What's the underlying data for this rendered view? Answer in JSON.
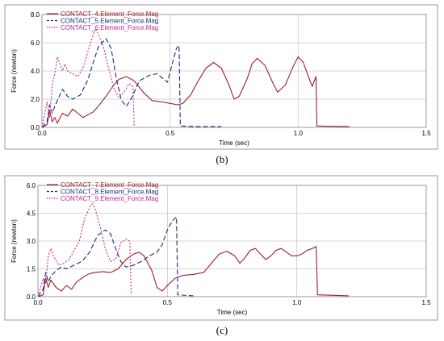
{
  "chart_data": [
    {
      "type": "line",
      "caption": "(b)",
      "xlabel": "Time (sec)",
      "ylabel": "Force (newton)",
      "xlim": [
        0,
        1.5
      ],
      "ylim": [
        0,
        8
      ],
      "x_ticks": [
        "0.0",
        "0.5",
        "1.0",
        "1.5"
      ],
      "y_ticks": [
        "0.0",
        "2.0",
        "4.0",
        "6.0",
        "8.0"
      ],
      "grid": true,
      "legend": "top-left",
      "series": [
        {
          "name": "CONTACT_4.Element_Force.Mag",
          "color": "#9a1f2a",
          "dash": "solid",
          "points": [
            [
              0,
              0
            ],
            [
              0.02,
              0.2
            ],
            [
              0.03,
              1.2
            ],
            [
              0.04,
              0.4
            ],
            [
              0.05,
              0.7
            ],
            [
              0.06,
              0.3
            ],
            [
              0.08,
              1.0
            ],
            [
              0.1,
              0.8
            ],
            [
              0.12,
              1.3
            ],
            [
              0.14,
              1.0
            ],
            [
              0.16,
              0.7
            ],
            [
              0.18,
              0.9
            ],
            [
              0.2,
              1.1
            ],
            [
              0.22,
              1.5
            ],
            [
              0.25,
              2.2
            ],
            [
              0.28,
              3.0
            ],
            [
              0.3,
              3.4
            ],
            [
              0.33,
              3.6
            ],
            [
              0.36,
              3.3
            ],
            [
              0.4,
              2.4
            ],
            [
              0.43,
              1.9
            ],
            [
              0.47,
              1.8
            ],
            [
              0.5,
              1.7
            ],
            [
              0.53,
              1.6
            ],
            [
              0.55,
              1.7
            ],
            [
              0.58,
              2.3
            ],
            [
              0.61,
              3.3
            ],
            [
              0.64,
              4.2
            ],
            [
              0.67,
              4.6
            ],
            [
              0.7,
              4.2
            ],
            [
              0.73,
              3.0
            ],
            [
              0.75,
              2.0
            ],
            [
              0.77,
              2.2
            ],
            [
              0.8,
              3.4
            ],
            [
              0.82,
              4.5
            ],
            [
              0.84,
              4.9
            ],
            [
              0.87,
              4.4
            ],
            [
              0.9,
              3.2
            ],
            [
              0.92,
              2.5
            ],
            [
              0.95,
              3.0
            ],
            [
              0.98,
              4.3
            ],
            [
              1.0,
              5.0
            ],
            [
              1.02,
              4.6
            ],
            [
              1.04,
              3.6
            ],
            [
              1.055,
              2.9
            ],
            [
              1.065,
              3.4
            ],
            [
              1.07,
              3.6
            ],
            [
              1.073,
              0.1
            ],
            [
              1.2,
              0.05
            ]
          ]
        },
        {
          "name": "CONTACT_5.Element_Force.Mag",
          "color": "#1a2a7c",
          "dash": "6,3",
          "points": [
            [
              0,
              0
            ],
            [
              0.02,
              0.4
            ],
            [
              0.03,
              1.6
            ],
            [
              0.04,
              1.0
            ],
            [
              0.05,
              1.5
            ],
            [
              0.06,
              1.9
            ],
            [
              0.08,
              2.7
            ],
            [
              0.1,
              2.2
            ],
            [
              0.12,
              2.0
            ],
            [
              0.15,
              2.3
            ],
            [
              0.18,
              3.4
            ],
            [
              0.2,
              4.6
            ],
            [
              0.22,
              5.7
            ],
            [
              0.25,
              6.3
            ],
            [
              0.27,
              5.6
            ],
            [
              0.29,
              3.5
            ],
            [
              0.31,
              1.9
            ],
            [
              0.33,
              1.5
            ],
            [
              0.35,
              2.1
            ],
            [
              0.38,
              3.3
            ],
            [
              0.42,
              3.7
            ],
            [
              0.45,
              3.8
            ],
            [
              0.47,
              3.5
            ],
            [
              0.49,
              3.2
            ],
            [
              0.51,
              4.6
            ],
            [
              0.525,
              5.6
            ],
            [
              0.535,
              5.8
            ],
            [
              0.54,
              0.1
            ],
            [
              0.6,
              0.05
            ],
            [
              0.7,
              0.05
            ]
          ]
        },
        {
          "name": "CONTACT_6.Element_Force.Mag",
          "color": "#b8298f",
          "dash": "2,2",
          "points": [
            [
              0,
              0
            ],
            [
              0.02,
              1.8
            ],
            [
              0.03,
              0.7
            ],
            [
              0.04,
              3.0
            ],
            [
              0.05,
              3.8
            ],
            [
              0.06,
              5.0
            ],
            [
              0.07,
              4.5
            ],
            [
              0.08,
              4.0
            ],
            [
              0.09,
              4.5
            ],
            [
              0.1,
              4.0
            ],
            [
              0.12,
              3.8
            ],
            [
              0.14,
              3.6
            ],
            [
              0.16,
              4.2
            ],
            [
              0.18,
              5.4
            ],
            [
              0.2,
              6.6
            ],
            [
              0.21,
              7.0
            ],
            [
              0.22,
              6.6
            ],
            [
              0.24,
              5.7
            ],
            [
              0.26,
              4.2
            ],
            [
              0.28,
              2.8
            ],
            [
              0.3,
              2.1
            ],
            [
              0.32,
              2.5
            ],
            [
              0.34,
              3.1
            ],
            [
              0.355,
              2.9
            ],
            [
              0.36,
              0.1
            ]
          ]
        }
      ]
    },
    {
      "type": "line",
      "caption": "(c)",
      "xlabel": "Time (sec)",
      "ylabel": "Force (newton)",
      "xlim": [
        0,
        1.5
      ],
      "ylim": [
        0,
        6
      ],
      "x_ticks": [
        "0.0",
        "0.5",
        "1.0",
        "1.5"
      ],
      "y_ticks": [
        "0.0",
        "1.5",
        "3.0",
        "4.5",
        "6.0"
      ],
      "grid": true,
      "legend": "top-left",
      "series": [
        {
          "name": "CONTACT_7.Element_Force.Mag",
          "color": "#9a1f2a",
          "dash": "solid",
          "points": [
            [
              0,
              0
            ],
            [
              0.02,
              0.1
            ],
            [
              0.03,
              1.0
            ],
            [
              0.04,
              0.5
            ],
            [
              0.05,
              0.9
            ],
            [
              0.07,
              0.5
            ],
            [
              0.09,
              0.3
            ],
            [
              0.11,
              0.6
            ],
            [
              0.13,
              0.4
            ],
            [
              0.15,
              0.8
            ],
            [
              0.18,
              1.1
            ],
            [
              0.2,
              1.25
            ],
            [
              0.22,
              1.3
            ],
            [
              0.25,
              1.35
            ],
            [
              0.28,
              1.3
            ],
            [
              0.31,
              1.5
            ],
            [
              0.34,
              2.0
            ],
            [
              0.37,
              2.3
            ],
            [
              0.39,
              2.4
            ],
            [
              0.41,
              2.2
            ],
            [
              0.44,
              1.4
            ],
            [
              0.46,
              0.5
            ],
            [
              0.48,
              0.3
            ],
            [
              0.5,
              0.6
            ],
            [
              0.53,
              1.0
            ],
            [
              0.56,
              1.15
            ],
            [
              0.6,
              1.2
            ],
            [
              0.64,
              1.3
            ],
            [
              0.67,
              1.8
            ],
            [
              0.7,
              2.3
            ],
            [
              0.73,
              2.45
            ],
            [
              0.76,
              2.2
            ],
            [
              0.78,
              1.8
            ],
            [
              0.8,
              2.1
            ],
            [
              0.82,
              2.5
            ],
            [
              0.84,
              2.6
            ],
            [
              0.86,
              2.3
            ],
            [
              0.88,
              2.0
            ],
            [
              0.9,
              2.2
            ],
            [
              0.92,
              2.5
            ],
            [
              0.94,
              2.6
            ],
            [
              0.96,
              2.4
            ],
            [
              0.98,
              2.2
            ],
            [
              1.0,
              2.2
            ],
            [
              1.02,
              2.3
            ],
            [
              1.04,
              2.5
            ],
            [
              1.06,
              2.6
            ],
            [
              1.075,
              2.7
            ],
            [
              1.08,
              0.1
            ],
            [
              1.2,
              0.05
            ]
          ]
        },
        {
          "name": "CONTACT_8.Element_Force.Mag",
          "color": "#1a2a7c",
          "dash": "6,3",
          "points": [
            [
              0,
              0
            ],
            [
              0.02,
              0.4
            ],
            [
              0.03,
              1.3
            ],
            [
              0.04,
              0.8
            ],
            [
              0.05,
              1.1
            ],
            [
              0.07,
              1.4
            ],
            [
              0.09,
              1.6
            ],
            [
              0.11,
              1.5
            ],
            [
              0.14,
              1.7
            ],
            [
              0.17,
              1.9
            ],
            [
              0.2,
              2.4
            ],
            [
              0.23,
              3.3
            ],
            [
              0.26,
              3.6
            ],
            [
              0.28,
              3.4
            ],
            [
              0.3,
              2.6
            ],
            [
              0.32,
              1.9
            ],
            [
              0.34,
              1.6
            ],
            [
              0.37,
              1.7
            ],
            [
              0.4,
              1.9
            ],
            [
              0.43,
              2.2
            ],
            [
              0.46,
              2.4
            ],
            [
              0.48,
              2.8
            ],
            [
              0.5,
              3.6
            ],
            [
              0.52,
              4.1
            ],
            [
              0.535,
              4.3
            ],
            [
              0.54,
              0.1
            ],
            [
              0.6,
              0.05
            ]
          ]
        },
        {
          "name": "CONTACT_9.Element_Force.Mag",
          "color": "#b8298f",
          "dash": "2,2",
          "points": [
            [
              0,
              0
            ],
            [
              0.02,
              1.0
            ],
            [
              0.03,
              0.7
            ],
            [
              0.04,
              2.2
            ],
            [
              0.05,
              2.6
            ],
            [
              0.06,
              2.2
            ],
            [
              0.08,
              1.7
            ],
            [
              0.1,
              1.8
            ],
            [
              0.12,
              2.0
            ],
            [
              0.14,
              2.5
            ],
            [
              0.16,
              3.0
            ],
            [
              0.18,
              4.2
            ],
            [
              0.2,
              4.8
            ],
            [
              0.21,
              5.0
            ],
            [
              0.22,
              4.8
            ],
            [
              0.24,
              3.8
            ],
            [
              0.26,
              2.6
            ],
            [
              0.28,
              1.9
            ],
            [
              0.3,
              2.0
            ],
            [
              0.32,
              2.9
            ],
            [
              0.34,
              3.1
            ],
            [
              0.355,
              3.0
            ],
            [
              0.36,
              0.1
            ]
          ]
        }
      ]
    }
  ]
}
